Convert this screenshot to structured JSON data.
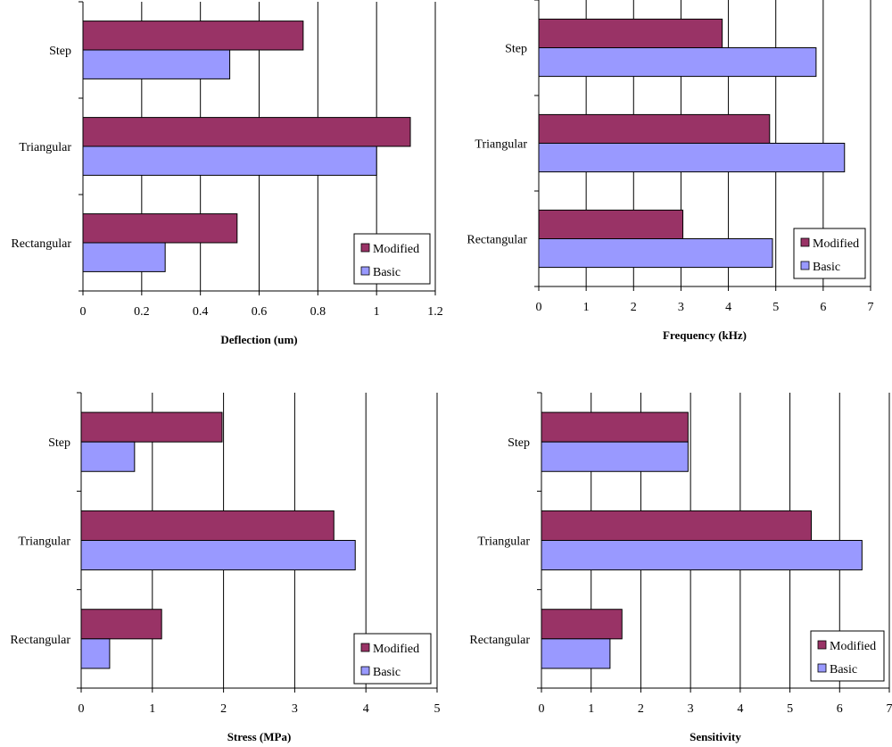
{
  "chart_data": [
    {
      "type": "bar",
      "orientation": "horizontal",
      "title": "",
      "xlabel": "Deflection (um)",
      "ylabel": "",
      "categories": [
        "Step",
        "Triangular",
        "Rectangular"
      ],
      "series": [
        {
          "name": "Modified",
          "color": "#993366",
          "values": [
            0.75,
            1.115,
            0.525
          ]
        },
        {
          "name": "Basic",
          "color": "#9999ff",
          "values": [
            0.5,
            1.0,
            0.28
          ]
        }
      ],
      "xlim": [
        0,
        1.2
      ],
      "ticks": [
        0,
        0.2,
        0.4,
        0.6,
        0.8,
        1,
        1.2
      ],
      "tick_labels": [
        "0",
        "0.2",
        "0.4",
        "0.6",
        "0.8",
        "1",
        "1.2"
      ],
      "legend": [
        "Modified",
        "Basic"
      ],
      "legend_position": "bottom-right",
      "grid": true
    },
    {
      "type": "bar",
      "orientation": "horizontal",
      "title": "",
      "xlabel": "Frequency (kHz)",
      "ylabel": "",
      "categories": [
        "Step",
        "Triangular",
        "Rectangular"
      ],
      "series": [
        {
          "name": "Modified",
          "color": "#993366",
          "values": [
            3.87,
            4.87,
            3.04
          ]
        },
        {
          "name": "Basic",
          "color": "#9999ff",
          "values": [
            5.85,
            6.45,
            4.93
          ]
        }
      ],
      "xlim": [
        0,
        7
      ],
      "ticks": [
        0,
        1,
        2,
        3,
        4,
        5,
        6,
        7
      ],
      "tick_labels": [
        "0",
        "1",
        "2",
        "3",
        "4",
        "5",
        "6",
        "7"
      ],
      "legend": [
        "Modified",
        "Basic"
      ],
      "legend_position": "bottom-right",
      "grid": true
    },
    {
      "type": "bar",
      "orientation": "horizontal",
      "title": "",
      "xlabel": "Stress (MPa)",
      "ylabel": "",
      "categories": [
        "Step",
        "Triangular",
        "Rectangular"
      ],
      "series": [
        {
          "name": "Modified",
          "color": "#993366",
          "values": [
            1.98,
            3.55,
            1.13
          ]
        },
        {
          "name": "Basic",
          "color": "#9999ff",
          "values": [
            0.75,
            3.85,
            0.4
          ]
        }
      ],
      "xlim": [
        0,
        5
      ],
      "ticks": [
        0,
        1,
        2,
        3,
        4,
        5
      ],
      "tick_labels": [
        "0",
        "1",
        "2",
        "3",
        "4",
        "5"
      ],
      "legend": [
        "Modified",
        "Basic"
      ],
      "legend_position": "bottom-right",
      "grid": true
    },
    {
      "type": "bar",
      "orientation": "horizontal",
      "title": "",
      "xlabel": "Sensitivity",
      "ylabel": "",
      "categories": [
        "Step",
        "Triangular",
        "Rectangular"
      ],
      "series": [
        {
          "name": "Modified",
          "color": "#993366",
          "values": [
            2.95,
            5.43,
            1.62
          ]
        },
        {
          "name": "Basic",
          "color": "#9999ff",
          "values": [
            2.95,
            6.45,
            1.38
          ]
        }
      ],
      "xlim": [
        0,
        7
      ],
      "ticks": [
        0,
        1,
        2,
        3,
        4,
        5,
        6,
        7
      ],
      "tick_labels": [
        "0",
        "1",
        "2",
        "3",
        "4",
        "5",
        "6",
        "7"
      ],
      "legend": [
        "Modified",
        "Basic"
      ],
      "legend_position": "bottom-right",
      "grid": true
    }
  ]
}
